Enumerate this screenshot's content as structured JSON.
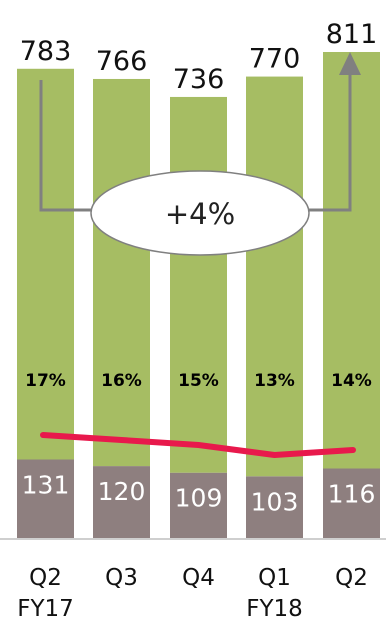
{
  "chart_data": {
    "type": "bar",
    "categories": [
      {
        "line1": "Q2",
        "line2": "FY17"
      },
      {
        "line1": "Q3",
        "line2": ""
      },
      {
        "line1": "Q4",
        "line2": ""
      },
      {
        "line1": "Q1",
        "line2": "FY18"
      },
      {
        "line1": "Q2",
        "line2": ""
      }
    ],
    "series": [
      {
        "values": [
          131,
          120,
          109,
          103,
          116
        ],
        "color": "#8e7f7f"
      },
      {
        "values": [
          652,
          646,
          627,
          667,
          695
        ],
        "color": "#a6bd63"
      }
    ],
    "totals": [
      783,
      766,
      736,
      770,
      811
    ],
    "percentages": [
      "17%",
      "16%",
      "15%",
      "13%",
      "14%"
    ],
    "line_series": {
      "values": [
        17,
        16,
        15,
        13,
        14
      ],
      "color": "#e8194c"
    },
    "growth_label": "+4%",
    "arrow_color": "#808080",
    "ylim": [
      0,
      811
    ],
    "title": "",
    "xlabel": "",
    "ylabel": ""
  }
}
